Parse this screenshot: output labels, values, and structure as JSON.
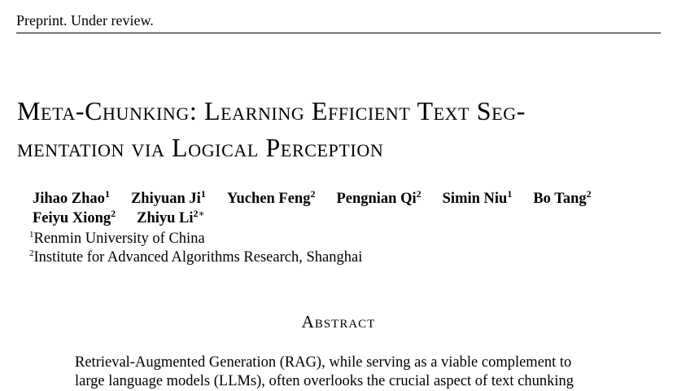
{
  "header": {
    "text": "Preprint. Under review."
  },
  "title": {
    "lines": [
      "Meta-Chunking: Learning Efficient Text Seg-",
      "mentation via Logical Perception"
    ]
  },
  "authors": {
    "rows": [
      [
        {
          "name": "Jihao Zhao",
          "sup": "1"
        },
        {
          "name": "Zhiyuan Ji",
          "sup": "1"
        },
        {
          "name": "Yuchen Feng",
          "sup": "2"
        },
        {
          "name": "Pengnian Qi",
          "sup": "2"
        },
        {
          "name": "Simin Niu",
          "sup": "1"
        },
        {
          "name": "Bo Tang",
          "sup": "2"
        }
      ],
      [
        {
          "name": "Feiyu Xiong",
          "sup": "2"
        },
        {
          "name": "Zhiyu Li",
          "sup": "2",
          "mark": "∗"
        }
      ]
    ]
  },
  "affiliations": [
    {
      "sup": "1",
      "text": "Renmin University of China"
    },
    {
      "sup": "2",
      "text": "Institute for Advanced Algorithms Research, Shanghai"
    }
  ],
  "abstract": {
    "heading": "Abstract",
    "lines": [
      "Retrieval-Augmented Generation (RAG), while serving as a viable complement to",
      "large language models (LLMs), often overlooks the crucial aspect of text chunking"
    ]
  }
}
